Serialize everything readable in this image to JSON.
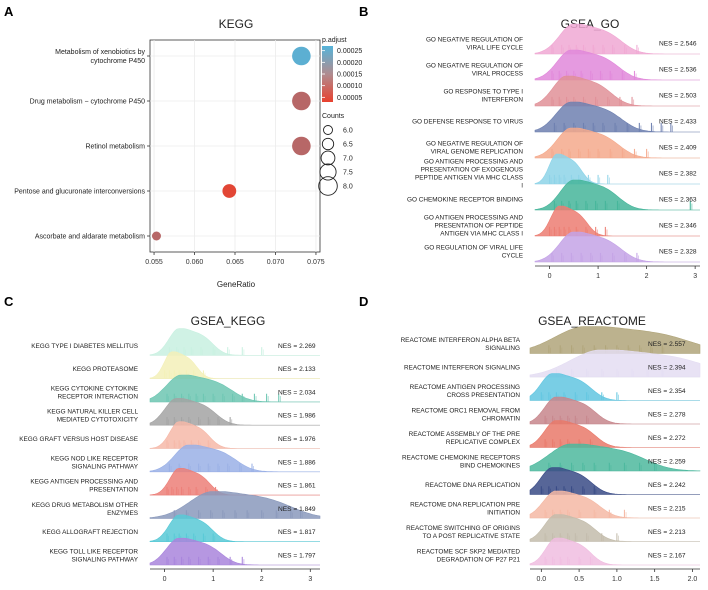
{
  "panels": {
    "A": {
      "letter": "A",
      "chart_data": {
        "type": "scatter",
        "title": "KEGG",
        "xlabel": "GeneRatio",
        "ylabel": "",
        "xlim": [
          0.0545,
          0.0755
        ],
        "xticks": [
          0.055,
          0.06,
          0.065,
          0.07,
          0.075
        ],
        "xtick_labels": [
          "0.055",
          "0.060",
          "0.065",
          "0.070",
          "0.075"
        ],
        "categories": [
          "Metabolism of xenobiotics by\ncytochrome P450",
          "Drug metabolism − cytochrome P450",
          "Retinol metabolism",
          "Pentose and glucuronate interconversions",
          "Ascorbate and aldarate metabolism"
        ],
        "points": [
          {
            "gene_ratio": 0.0732,
            "p_adjust": 0.00026,
            "count": 8
          },
          {
            "gene_ratio": 0.0732,
            "p_adjust": 0.00011,
            "count": 8
          },
          {
            "gene_ratio": 0.0732,
            "p_adjust": 0.00011,
            "count": 8
          },
          {
            "gene_ratio": 0.0643,
            "p_adjust": 4e-05,
            "count": 7
          },
          {
            "gene_ratio": 0.0553,
            "p_adjust": 0.00011,
            "count": 6
          }
        ],
        "color_legend": {
          "title": "p.adjust",
          "ticks": [
            0.00025,
            0.0002,
            0.00015,
            0.0001,
            5e-05
          ],
          "tick_labels": [
            "0.00025",
            "0.00020",
            "0.00015",
            "0.00010",
            "0.00005"
          ],
          "range": [
            3e-05,
            0.00027
          ],
          "low_color": "#e8412e",
          "high_color": "#56b4d9"
        },
        "size_legend": {
          "title": "Counts",
          "values": [
            6.0,
            6.5,
            7.0,
            7.5,
            8.0
          ],
          "labels": [
            "6.0",
            "6.5",
            "7.0",
            "7.5",
            "8.0"
          ]
        }
      }
    },
    "B": {
      "letter": "B",
      "chart_data": {
        "type": "ridgeline",
        "title": "GSEA_GO",
        "xlim": [
          -0.3,
          3.1
        ],
        "xticks": [
          0,
          1,
          2,
          3
        ],
        "xtick_labels": [
          "0",
          "1",
          "2",
          "3"
        ],
        "series": [
          {
            "name": "GO NEGATIVE REGULATION OF\nVIRAL LIFE CYCLE",
            "nes_label": "NES = 2.546",
            "color": "#f0a8d3",
            "peak": 0.5,
            "spread": 0.85,
            "rug": [
              0.05,
              0.25,
              0.4,
              0.55,
              0.7,
              0.9,
              1.1,
              1.3,
              1.55,
              1.8
            ]
          },
          {
            "name": "GO NEGATIVE REGULATION OF\nVIRAL PROCESS",
            "nes_label": "NES = 2.536",
            "color": "#e188da",
            "peak": 0.45,
            "spread": 0.85,
            "rug": [
              0.05,
              0.2,
              0.35,
              0.5,
              0.65,
              0.85,
              1.05,
              1.25,
              1.5,
              1.75
            ]
          },
          {
            "name": "GO RESPONSE TO TYPE I\nINTERFERON",
            "nes_label": "NES = 2.503",
            "color": "#e09098",
            "peak": 0.35,
            "spread": 0.8,
            "rug": [
              0.05,
              0.2,
              0.35,
              0.5,
              0.7,
              0.95,
              1.2,
              1.45,
              1.7
            ]
          },
          {
            "name": "GO DEFENSE RESPONSE TO VIRUS",
            "nes_label": "NES = 2.433",
            "color": "#6e80b0",
            "peak": 0.45,
            "spread": 0.9,
            "rug": [
              0.1,
              0.3,
              0.5,
              0.7,
              0.9,
              1.1,
              1.35,
              1.6,
              1.85,
              2.1,
              2.3,
              2.5
            ]
          },
          {
            "name": "GO NEGATIVE REGULATION OF\nVIRAL GENOME REPLICATION",
            "nes_label": "NES = 2.409",
            "color": "#f4a98c",
            "peak": 0.45,
            "spread": 0.85,
            "rug": [
              0.05,
              0.25,
              0.4,
              0.6,
              0.8,
              1.0,
              1.25,
              1.5,
              1.75,
              2.0
            ]
          },
          {
            "name": "GO ANTIGEN PROCESSING AND\nPRESENTATION OF EXOGENOUS\nPEPTIDE ANTIGEN VIA MHC CLASS\nI",
            "nes_label": "NES = 2.382",
            "color": "#8dd3e8",
            "peak": 0.15,
            "spread": 0.45,
            "rug": [
              0.0,
              0.1,
              0.2,
              0.3,
              0.45,
              0.6,
              0.8,
              1.0,
              1.2
            ]
          },
          {
            "name": "GO CHEMOKINE RECEPTOR BINDING",
            "nes_label": "NES = 2.363",
            "color": "#45b59a",
            "peak": 0.5,
            "spread": 0.8,
            "rug": [
              0.1,
              0.25,
              0.4,
              0.55,
              0.75,
              0.95,
              1.15,
              1.4,
              2.9
            ]
          },
          {
            "name": "GO ANTIGEN PROCESSING AND\nPRESENTATION OF PEPTIDE\nANTIGEN VIA MHC CLASS I",
            "nes_label": "NES = 2.346",
            "color": "#ec7d72",
            "peak": 0.2,
            "spread": 0.5,
            "rug": [
              0.0,
              0.1,
              0.2,
              0.3,
              0.4,
              0.55,
              0.75,
              0.95,
              1.15
            ]
          },
          {
            "name": "GO REGULATION OF VIRAL LIFE\nCYCLE",
            "nes_label": "NES = 2.328",
            "color": "#c4a3e6",
            "peak": 0.5,
            "spread": 0.85,
            "rug": [
              0.05,
              0.25,
              0.45,
              0.65,
              0.85,
              1.05,
              1.3,
              1.55,
              1.8
            ]
          }
        ]
      }
    },
    "C": {
      "letter": "C",
      "chart_data": {
        "type": "ridgeline",
        "title": "GSEA_KEGG",
        "xlim": [
          -0.3,
          3.2
        ],
        "xticks": [
          0,
          1,
          2,
          3
        ],
        "xtick_labels": [
          "0",
          "1",
          "2",
          "3"
        ],
        "series": [
          {
            "name": "KEGG TYPE I DIABETES MELLITUS",
            "nes_label": "NES = 2.269",
            "color": "#c8f0e0",
            "peak": 0.3,
            "spread": 0.6,
            "rug": [
              0.1,
              0.25,
              0.4,
              0.55,
              0.75,
              1.0,
              1.3,
              1.6,
              2.0
            ]
          },
          {
            "name": "KEGG PROTEASOME",
            "nes_label": "NES = 2.133",
            "color": "#f3f0b8",
            "peak": 0.15,
            "spread": 0.45,
            "rug": [
              0.0,
              0.1,
              0.2,
              0.3,
              0.45,
              0.6,
              0.8
            ]
          },
          {
            "name": "KEGG CYTOKINE CYTOKINE\nRECEPTOR INTERACTION",
            "nes_label": "NES = 2.034",
            "color": "#6dc6b2",
            "peak": 0.35,
            "spread": 0.9,
            "rug": [
              0.05,
              0.2,
              0.35,
              0.5,
              0.65,
              0.8,
              1.0,
              1.2,
              1.4,
              1.6,
              1.85,
              2.1,
              2.35
            ]
          },
          {
            "name": "KEGG NATURAL KILLER CELL\nMEDIATED CYTOTOXICITY",
            "nes_label": "NES = 1.986",
            "color": "#a3a3a3",
            "peak": 0.25,
            "spread": 0.7,
            "rug": [
              0.05,
              0.2,
              0.35,
              0.5,
              0.7,
              0.9,
              1.1,
              1.35
            ]
          },
          {
            "name": "KEGG GRAFT VERSUS HOST DISEASE",
            "nes_label": "NES = 1.976",
            "color": "#f6b8a8",
            "peak": 0.3,
            "spread": 0.55,
            "rug": [
              0.05,
              0.2,
              0.3,
              0.4,
              0.55,
              0.7,
              0.9
            ]
          },
          {
            "name": "KEGG NOD LIKE RECEPTOR\nSIGNALING PATHWAY",
            "nes_label": "NES = 1.886",
            "color": "#9ab0e6",
            "peak": 0.5,
            "spread": 0.85,
            "rug": [
              0.1,
              0.3,
              0.5,
              0.7,
              0.9,
              1.1,
              1.3,
              1.55,
              1.8
            ]
          },
          {
            "name": "KEGG ANTIGEN PROCESSING AND\nPRESENTATION",
            "nes_label": "NES = 1.861",
            "color": "#ec7f78",
            "peak": 0.3,
            "spread": 0.55,
            "rug": [
              0.05,
              0.15,
              0.25,
              0.35,
              0.5,
              0.65,
              0.85,
              1.05
            ]
          },
          {
            "name": "KEGG DRUG METABOLISM OTHER\nENZYMES",
            "nes_label": "NES = 1.849",
            "color": "#8a99bc",
            "peak": 1.0,
            "spread": 1.4,
            "rug": [
              0.2,
              0.45,
              0.7,
              0.95,
              1.2,
              1.45,
              1.7,
              2.0,
              2.3,
              2.6,
              2.8
            ]
          },
          {
            "name": "KEGG ALLOGRAFT REJECTION",
            "nes_label": "NES = 1.817",
            "color": "#58c9d6",
            "peak": 0.3,
            "spread": 0.6,
            "rug": [
              0.05,
              0.2,
              0.3,
              0.45,
              0.6,
              0.8,
              1.0
            ]
          },
          {
            "name": "KEGG TOLL LIKE RECEPTOR\nSIGNALING PATHWAY",
            "nes_label": "NES = 1.797",
            "color": "#a985dc",
            "peak": 0.3,
            "spread": 0.75,
            "rug": [
              0.05,
              0.2,
              0.35,
              0.5,
              0.7,
              0.9,
              1.1,
              1.35,
              1.6
            ]
          }
        ]
      }
    },
    "D": {
      "letter": "D",
      "chart_data": {
        "type": "ridgeline",
        "title": "GSEA_REACTOME",
        "xlim": [
          -0.15,
          2.1
        ],
        "xticks": [
          0.0,
          0.5,
          1.0,
          1.5,
          2.0
        ],
        "xtick_labels": [
          "0.0",
          "0.5",
          "1.0",
          "1.5",
          "2.0"
        ],
        "series": [
          {
            "name": "REACTOME INTERFERON ALPHA BETA\nSIGNALING",
            "nes_label": "NES = 2.557",
            "color": "#b0a57a",
            "peak": 0.6,
            "spread": 1.2,
            "rug": [
              0.1,
              0.25,
              0.4,
              0.55,
              0.7,
              0.85,
              1.0,
              1.15,
              1.3,
              1.45,
              1.6
            ]
          },
          {
            "name": "REACTOME INTERFERON SIGNALING",
            "nes_label": "NES = 2.394",
            "color": "#e4ddf2",
            "peak": 0.8,
            "spread": 1.2,
            "rug": [
              0.2,
              0.4,
              0.6,
              0.8,
              1.0,
              1.2,
              1.4,
              1.6
            ]
          },
          {
            "name": "REACTOME ANTIGEN PROCESSING\nCROSS PRESENTATION",
            "nes_label": "NES = 2.354",
            "color": "#62c6e0",
            "peak": 0.15,
            "spread": 0.45,
            "rug": [
              0.0,
              0.1,
              0.2,
              0.3,
              0.45,
              0.6,
              0.8,
              1.0
            ]
          },
          {
            "name": "REACTOME ORC1 REMOVAL FROM\nCHROMATIN",
            "nes_label": "NES = 2.278",
            "color": "#c7868c",
            "peak": 0.2,
            "spread": 0.45,
            "rug": [
              0.05,
              0.15,
              0.25,
              0.35,
              0.45,
              0.6
            ]
          },
          {
            "name": "REACTOME ASSEMBLY OF THE PRE\nREPLICATIVE COMPLEX",
            "nes_label": "NES = 2.272",
            "color": "#e9796a",
            "peak": 0.2,
            "spread": 0.45,
            "rug": [
              0.05,
              0.15,
              0.25,
              0.35,
              0.5,
              0.65
            ]
          },
          {
            "name": "REACTOME CHEMOKINE RECEPTORS\nBIND CHEMOKINES",
            "nes_label": "NES = 2.259",
            "color": "#4db89e",
            "peak": 0.4,
            "spread": 0.85,
            "rug": [
              0.1,
              0.25,
              0.4,
              0.55,
              0.7,
              0.9,
              1.1,
              1.3,
              1.5
            ]
          },
          {
            "name": "REACTOME DNA REPLICATION",
            "nes_label": "NES = 2.242",
            "color": "#394b86",
            "peak": 0.15,
            "spread": 0.45,
            "rug": [
              0.0,
              0.1,
              0.2,
              0.3,
              0.4,
              0.55,
              0.7
            ]
          },
          {
            "name": "REACTOME DNA REPLICATION PRE\nINITIATION",
            "nes_label": "NES = 2.215",
            "color": "#f4b8a4",
            "peak": 0.2,
            "spread": 0.5,
            "rug": [
              0.05,
              0.15,
              0.25,
              0.35,
              0.5,
              0.7,
              0.9,
              1.1
            ]
          },
          {
            "name": "REACTOME SWITCHING OF ORIGINS\nTO A POST REPLICATIVE STATE",
            "nes_label": "NES = 2.213",
            "color": "#c3bcab",
            "peak": 0.2,
            "spread": 0.45,
            "rug": [
              0.05,
              0.15,
              0.25,
              0.35,
              0.45,
              0.6,
              0.8,
              1.0
            ]
          },
          {
            "name": "REACTOME SCF SKP2 MEDIATED\nDEGRADATION OF P27 P21",
            "nes_label": "NES = 2.167",
            "color": "#f0bde0",
            "peak": 0.2,
            "spread": 0.4,
            "rug": [
              0.05,
              0.15,
              0.25,
              0.35,
              0.5,
              0.65
            ]
          }
        ]
      }
    }
  }
}
